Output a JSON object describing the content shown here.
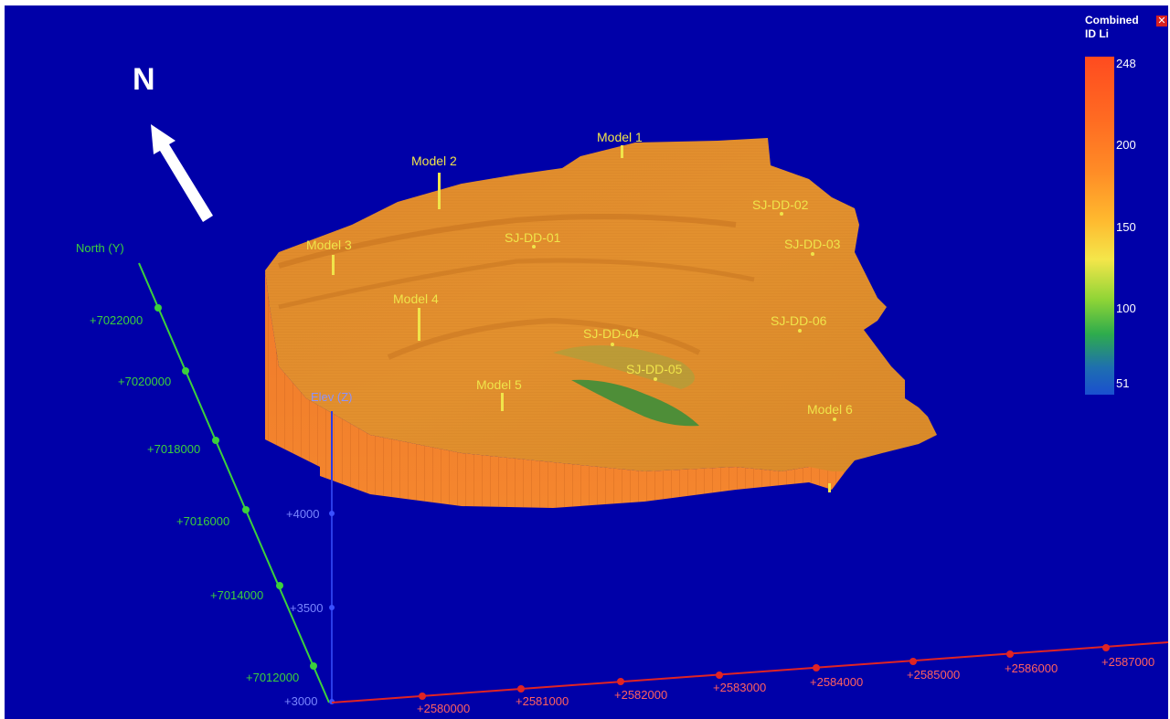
{
  "north_label": "N",
  "legend": {
    "title_line1": "Combined",
    "title_line2": "ID Li",
    "close_icon": "close-icon",
    "ticks": [
      "248",
      "200",
      "150",
      "100",
      "51"
    ]
  },
  "axes": {
    "north_title": "North (Y)",
    "north_ticks": [
      "+7022000",
      "+7020000",
      "+7018000",
      "+7016000",
      "+7014000",
      "+7012000"
    ],
    "elev_title": "Elev (Z)",
    "elev_ticks": [
      "+4000",
      "+3500",
      "+3000"
    ],
    "east_ticks": [
      "+2580000",
      "+2581000",
      "+2582000",
      "+2583000",
      "+2584000",
      "+2585000",
      "+2586000",
      "+2587000"
    ]
  },
  "model_labels": [
    "Model 1",
    "Model 2",
    "Model 3",
    "Model 4",
    "Model 5",
    "Model 6"
  ],
  "drillhole_labels": [
    "SJ-DD-01",
    "SJ-DD-02",
    "SJ-DD-03",
    "SJ-DD-04",
    "SJ-DD-05",
    "SJ-DD-06"
  ],
  "colors": {
    "background": "#0000a8",
    "north_axis": "#3cd03c",
    "elev_axis": "#2a3ce8",
    "east_axis": "#e02424",
    "surface": "#e88a2a",
    "label": "#f0e44a"
  }
}
